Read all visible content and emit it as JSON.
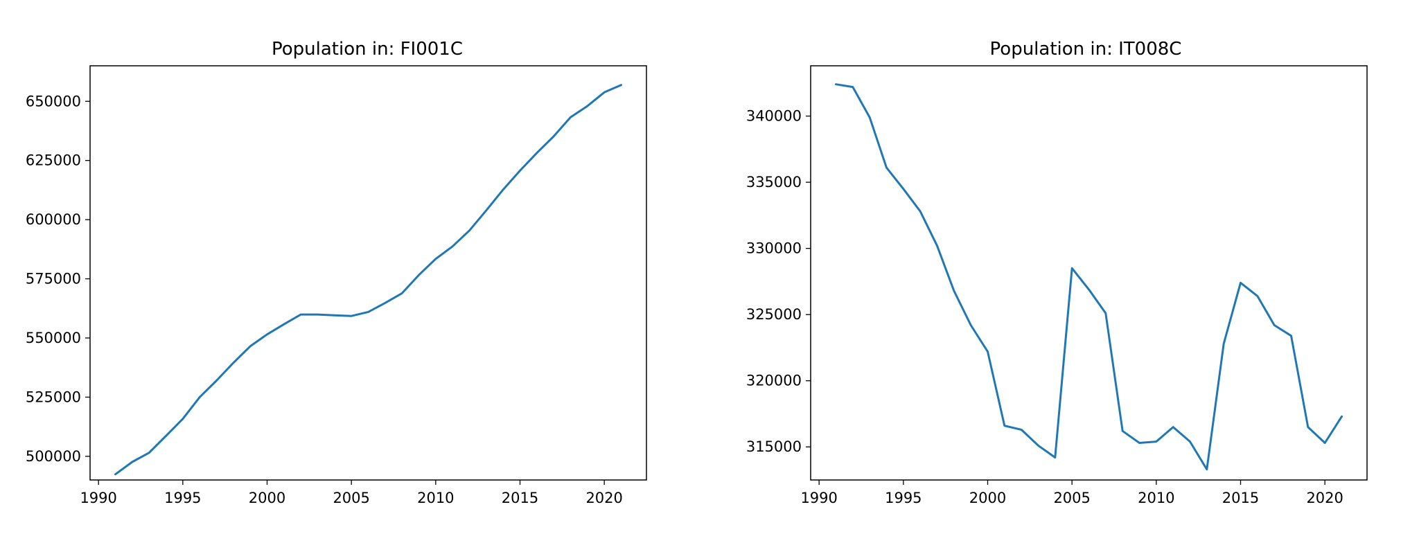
{
  "line_color": "#1f77b4",
  "chart_data": [
    {
      "type": "line",
      "title": "Population in: FI001C",
      "xlabel": "",
      "ylabel": "",
      "xlim": [
        1989.5,
        2022.5
      ],
      "ylim": [
        490000,
        665000
      ],
      "xticks": [
        1990,
        1995,
        2000,
        2005,
        2010,
        2015,
        2020
      ],
      "yticks": [
        500000,
        525000,
        550000,
        575000,
        600000,
        625000,
        650000
      ],
      "grid": false,
      "x": [
        1991,
        1992,
        1993,
        1994,
        1995,
        1996,
        1997,
        1998,
        1999,
        2000,
        2001,
        2002,
        2003,
        2004,
        2005,
        2006,
        2007,
        2008,
        2009,
        2010,
        2011,
        2012,
        2013,
        2014,
        2015,
        2016,
        2017,
        2018,
        2019,
        2020,
        2021
      ],
      "series": [
        {
          "values": [
            492400,
            497600,
            501500,
            508600,
            515800,
            525000,
            532000,
            539500,
            546500,
            551500,
            555800,
            559900,
            559900,
            559600,
            559300,
            561000,
            564800,
            568900,
            576600,
            583400,
            588700,
            595400,
            603900,
            612700,
            620700,
            628200,
            635200,
            643300,
            648000,
            653800,
            656900
          ]
        }
      ]
    },
    {
      "type": "line",
      "title": "Population in: IT008C",
      "xlabel": "",
      "ylabel": "",
      "xlim": [
        1989.5,
        2022.5
      ],
      "ylim": [
        312500,
        343800
      ],
      "xticks": [
        1990,
        1995,
        2000,
        2005,
        2010,
        2015,
        2020
      ],
      "yticks": [
        315000,
        320000,
        325000,
        330000,
        335000,
        340000
      ],
      "grid": false,
      "x": [
        1991,
        1992,
        1993,
        1994,
        1995,
        1996,
        1997,
        1998,
        1999,
        2000,
        2001,
        2002,
        2003,
        2004,
        2005,
        2006,
        2007,
        2008,
        2009,
        2010,
        2011,
        2012,
        2013,
        2014,
        2015,
        2016,
        2017,
        2018,
        2019,
        2020,
        2021
      ],
      "series": [
        {
          "values": [
            342400,
            342200,
            339900,
            336100,
            334500,
            332800,
            330200,
            326800,
            324200,
            322200,
            316600,
            316300,
            315100,
            314200,
            328500,
            326900,
            325100,
            316200,
            315300,
            315400,
            316500,
            315400,
            313300,
            322800,
            327400,
            326400,
            324200,
            323400,
            316500,
            315300,
            317300
          ]
        }
      ]
    }
  ]
}
